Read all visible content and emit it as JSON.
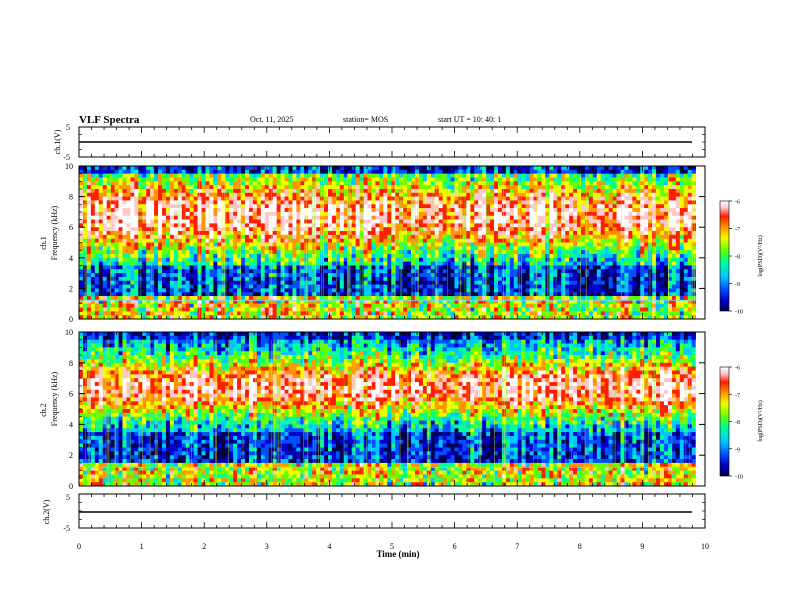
{
  "chart_data": {
    "type": "heatmap",
    "title": "VLF Spectra",
    "date": "Oct. 11, 2025",
    "station": "station= MOS",
    "start_ut": "start  UT  =   10: 40: 1",
    "x_axis": {
      "label": "Time  (min)",
      "range": [
        0,
        10
      ],
      "ticks": [
        "0",
        "1",
        "2",
        "3",
        "4",
        "5",
        "6",
        "7",
        "8",
        "9",
        "10"
      ]
    },
    "waveform_panels": [
      {
        "id": "ch1-wave",
        "ylabel": "ch.1(V)",
        "ylim": [
          -5,
          5
        ],
        "ticks": [
          "5",
          "-5"
        ],
        "baseline": 0
      },
      {
        "id": "ch2-wave",
        "ylabel": "ch.2(V)",
        "ylim": [
          -5,
          5
        ],
        "ticks": [
          "5",
          "-5"
        ],
        "baseline": 0
      }
    ],
    "spectrogram_panels": [
      {
        "id": "ch1-spec",
        "ylabel_line1": "ch.1",
        "ylabel_line2": "Frequency  (kHz)",
        "ylim": [
          0,
          10
        ],
        "ticks": [
          "0",
          "2",
          "4",
          "6",
          "8",
          "10"
        ],
        "peak_band_khz": [
          4,
          9
        ],
        "time_extent_min": 9.85
      },
      {
        "id": "ch2-spec",
        "ylabel_line1": "ch.2",
        "ylabel_line2": "Frequency  (kHz)",
        "ylim": [
          0,
          10
        ],
        "ticks": [
          "0",
          "2",
          "4",
          "6",
          "8",
          "10"
        ],
        "peak_band_khz": [
          5,
          8
        ],
        "time_extent_min": 9.85
      }
    ],
    "colorbar": {
      "label": "log(PSD)(V²/Hz)",
      "range": [
        -10,
        -6
      ],
      "ticks": [
        "-6",
        "-7",
        "-8",
        "-9",
        "-10"
      ],
      "colors": [
        "#000050",
        "#0000c8",
        "#0050ff",
        "#00c8ff",
        "#00ff96",
        "#64ff00",
        "#f0ff00",
        "#ff9600",
        "#ff1e00",
        "#ffc8c8",
        "#ffffff"
      ]
    }
  }
}
